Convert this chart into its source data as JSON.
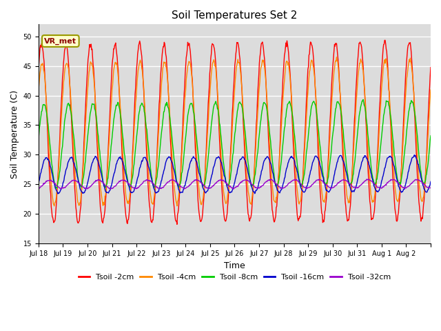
{
  "title": "Soil Temperatures Set 2",
  "xlabel": "Time",
  "ylabel": "Soil Temperature (C)",
  "ylim": [
    15,
    52
  ],
  "yticks": [
    15,
    20,
    25,
    30,
    35,
    40,
    45,
    50
  ],
  "plot_bg": "#dcdcdc",
  "grid_color": "white",
  "legend_labels": [
    "Tsoil -2cm",
    "Tsoil -4cm",
    "Tsoil -8cm",
    "Tsoil -16cm",
    "Tsoil -32cm"
  ],
  "line_colors": [
    "#ff0000",
    "#ff8800",
    "#00cc00",
    "#0000cc",
    "#9900cc"
  ],
  "annotation_text": "VR_met",
  "annotation_bg": "#ffffcc",
  "annotation_border": "#999900",
  "n_days": 16,
  "xtick_labels": [
    "Jul 18",
    "Jul 19",
    "Jul 20",
    "Jul 21",
    "Jul 22",
    "Jul 23",
    "Jul 24",
    "Jul 25",
    "Jul 26",
    "Jul 27",
    "Jul 28",
    "Jul 29",
    "Jul 30",
    "Jul 31",
    "Aug 1",
    "Aug 2"
  ],
  "amp2": 15.0,
  "amp4": 12.0,
  "amp8": 7.0,
  "amp16": 3.0,
  "amp32": 0.7,
  "base2": 33.5,
  "base4": 33.5,
  "base8": 31.5,
  "base16": 26.5,
  "base32": 25.0,
  "phase2": 0.25,
  "phase4": 0.2,
  "phase8": 0.05,
  "phase16": -0.15,
  "phase32": -0.4,
  "lw": 1.0
}
